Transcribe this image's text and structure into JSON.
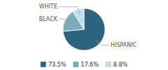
{
  "chart_data": {
    "type": "pie",
    "categories": [
      "HISPANIC",
      "BLACK",
      "WHITE"
    ],
    "values": [
      73.5,
      17.6,
      8.8
    ],
    "value_labels": [
      "73.5%",
      "17.6%",
      "8.8%"
    ],
    "colors": [
      "#2e6480",
      "#7aaabb",
      "#c5dde6"
    ],
    "legend": "bottom"
  }
}
